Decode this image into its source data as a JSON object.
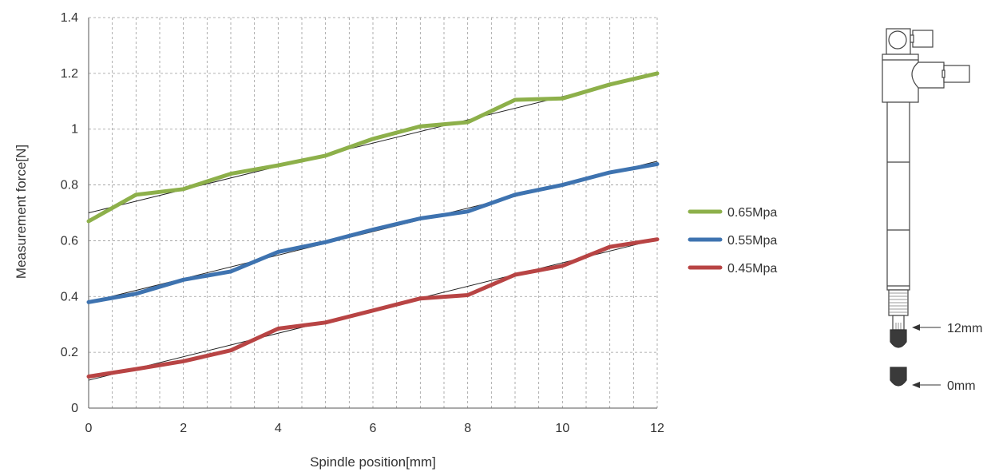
{
  "chart_data": {
    "type": "line",
    "title": "",
    "xlabel": "Spindle position[mm]",
    "ylabel": "Measurement force[N]",
    "xlim": [
      0,
      12
    ],
    "ylim": [
      0,
      1.4
    ],
    "x_ticks": [
      "0",
      "2",
      "4",
      "6",
      "8",
      "10",
      "12"
    ],
    "y_ticks": [
      "0",
      "0.2",
      "0.4",
      "0.6",
      "0.8",
      "1",
      "1.2",
      "1.4"
    ],
    "grid": "dashed",
    "legend_position": "right",
    "series": [
      {
        "name": "0.65Mpa",
        "color": "#8db04a",
        "x": [
          0,
          1,
          2,
          3,
          4,
          5,
          6,
          7,
          8,
          9,
          10,
          11,
          12
        ],
        "values": [
          0.67,
          0.765,
          0.785,
          0.84,
          0.87,
          0.905,
          0.965,
          1.01,
          1.025,
          1.105,
          1.11,
          1.16,
          1.2
        ],
        "trend": [
          0.7,
          1.2
        ]
      },
      {
        "name": "0.55Mpa",
        "color": "#3e73b0",
        "x": [
          0,
          1,
          2,
          3,
          4,
          5,
          6,
          7,
          8,
          9,
          10,
          11,
          12
        ],
        "values": [
          0.38,
          0.41,
          0.46,
          0.49,
          0.56,
          0.595,
          0.64,
          0.68,
          0.705,
          0.765,
          0.8,
          0.845,
          0.875
        ],
        "trend": [
          0.38,
          0.885
        ]
      },
      {
        "name": "0.45Mpa",
        "color": "#b84444",
        "x": [
          0,
          1,
          2,
          3,
          4,
          5,
          6,
          7,
          8,
          9,
          10,
          11,
          12
        ],
        "values": [
          0.113,
          0.14,
          0.168,
          0.207,
          0.285,
          0.307,
          0.35,
          0.393,
          0.405,
          0.478,
          0.51,
          0.578,
          0.605
        ],
        "trend": [
          0.1,
          0.605
        ]
      }
    ]
  },
  "diagram": {
    "label_top": "12mm",
    "label_bottom": "0mm"
  }
}
